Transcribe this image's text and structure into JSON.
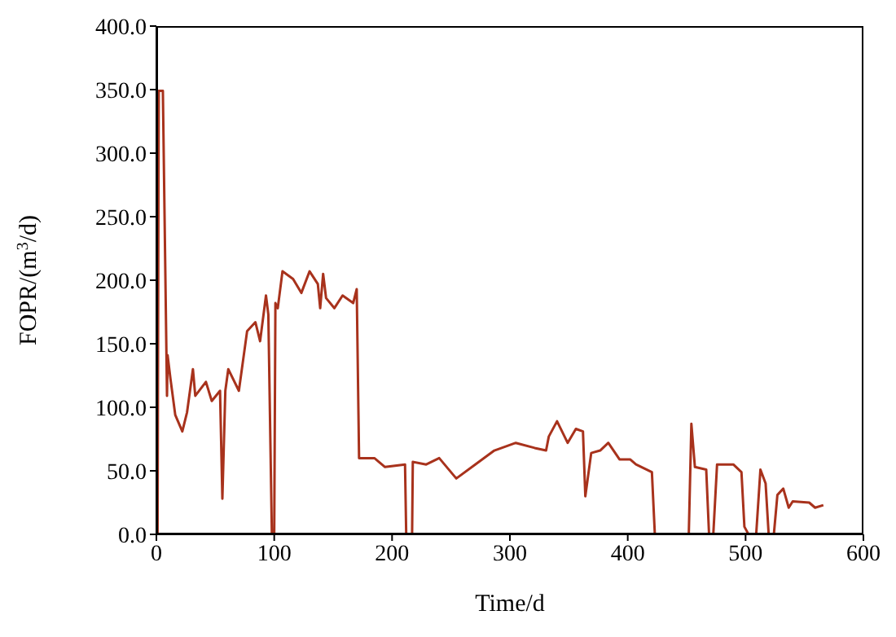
{
  "chart_data": {
    "type": "line",
    "xlabel": "Time/d",
    "ylabel": "FOPR/(m$^{3}$/d)",
    "x": [
      1,
      2,
      5.5,
      9,
      9.5,
      12,
      16,
      22,
      26,
      31,
      33,
      42,
      47,
      54,
      56,
      58.5,
      61,
      70,
      77,
      84,
      88,
      93,
      95,
      98,
      100,
      101,
      103,
      107,
      116,
      123,
      130,
      137,
      139,
      141.5,
      144,
      151,
      158,
      167,
      170,
      172,
      185,
      194,
      211,
      212,
      217,
      217.6,
      229,
      240,
      254.5,
      270.6,
      286.8,
      305,
      321,
      330.7,
      333,
      340,
      349,
      356,
      362,
      364,
      369,
      376.6,
      383.5,
      393,
      402,
      407,
      420.5,
      423,
      451.8,
      454,
      457,
      466.6,
      469,
      472.6,
      475.8,
      489.6,
      496.5,
      499,
      502.5,
      509,
      512.6,
      517,
      519.6,
      524,
      527,
      532,
      536.6,
      540,
      554,
      559,
      566
    ],
    "series": [
      {
        "color": "#a8321c",
        "values": [
          0,
          349,
          349,
          109,
          141,
          122,
          94,
          81,
          96,
          130,
          109,
          120,
          105,
          113,
          28,
          113,
          130,
          113,
          160,
          167,
          152,
          188,
          173,
          0,
          0,
          182,
          178,
          207,
          201,
          190,
          207,
          197,
          178,
          205,
          186,
          178,
          188,
          182,
          193,
          60,
          60,
          53,
          55,
          0,
          0,
          57,
          55,
          60,
          44,
          55,
          66,
          72,
          68,
          66,
          77,
          89,
          72,
          83,
          81,
          30,
          64,
          66,
          72,
          59,
          59,
          55,
          49,
          0,
          0,
          87,
          53,
          51,
          0,
          0,
          55,
          55,
          49,
          6,
          0,
          0,
          51,
          40,
          0,
          0,
          31,
          36,
          21,
          26,
          25,
          21,
          23
        ]
      }
    ],
    "xlim": [
      0,
      600
    ],
    "xticks": [
      0,
      100,
      200,
      300,
      400,
      500,
      600
    ],
    "ylim": [
      0,
      400
    ],
    "yticks": [
      {
        "value": 0,
        "label": "0.0"
      },
      {
        "value": 50,
        "label": "50.0"
      },
      {
        "value": 100,
        "label": "100.0"
      },
      {
        "value": 150,
        "label": "150.0"
      },
      {
        "value": 200,
        "label": "200.0"
      },
      {
        "value": 250,
        "label": "250.0"
      },
      {
        "value": 300,
        "label": "300.0"
      },
      {
        "value": 350,
        "label": "350.0"
      },
      {
        "value": 400,
        "label": "400.0"
      }
    ],
    "grid": false,
    "marker": "none",
    "line_style": "solid"
  }
}
